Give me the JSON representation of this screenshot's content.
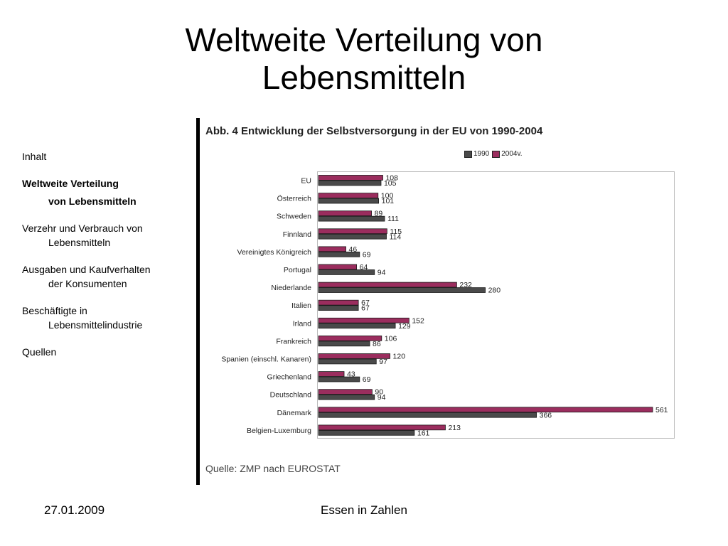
{
  "slide": {
    "title_line1": "Weltweite Verteilung von",
    "title_line2": "Lebensmitteln"
  },
  "nav": {
    "items": [
      {
        "line1": "Inhalt"
      },
      {
        "line1": "Weltweite Verteilung",
        "line2": "von Lebensmitteln"
      },
      {
        "line1": "Verzehr und Verbrauch von",
        "line2": "Lebensmitteln"
      },
      {
        "line1": "Ausgaben und Kaufverhalten",
        "line2": "der Konsumenten"
      },
      {
        "line1": "Beschäftigte in",
        "line2": "Lebensmittelindustrie"
      },
      {
        "line1": "Quellen"
      }
    ]
  },
  "chart_data": {
    "type": "bar",
    "orientation": "horizontal",
    "title": "Abb. 4 Entwicklung der Selbstversorgung in der EU von 1990-2004",
    "categories": [
      "EU",
      "Österreich",
      "Schweden",
      "Finnland",
      "Vereinigtes Königreich",
      "Portugal",
      "Niederlande",
      "Italien",
      "Irland",
      "Frankreich",
      "Spanien (einschl. Kanaren)",
      "Griechenland",
      "Deutschland",
      "Dänemark",
      "Belgien-Luxemburg"
    ],
    "series": [
      {
        "name": "2004v.",
        "color": "#9b2d5e",
        "values": [
          108,
          100,
          89,
          115,
          46,
          64,
          232,
          67,
          152,
          106,
          120,
          43,
          90,
          561,
          213
        ]
      },
      {
        "name": "1990",
        "color": "#4a4a4a",
        "values": [
          105,
          101,
          111,
          114,
          69,
          94,
          280,
          67,
          129,
          86,
          97,
          69,
          94,
          366,
          161
        ]
      }
    ],
    "legend_labels": [
      "1990",
      "2004v."
    ],
    "legend_colors": [
      "#4a4a4a",
      "#9b2d5e"
    ],
    "xlim": [
      0,
      561
    ],
    "grid": false,
    "legend_position": "top-right",
    "source": "Quelle: ZMP nach EUROSTAT"
  },
  "footer": {
    "date": "27.01.2009",
    "center": "Essen in Zahlen"
  }
}
